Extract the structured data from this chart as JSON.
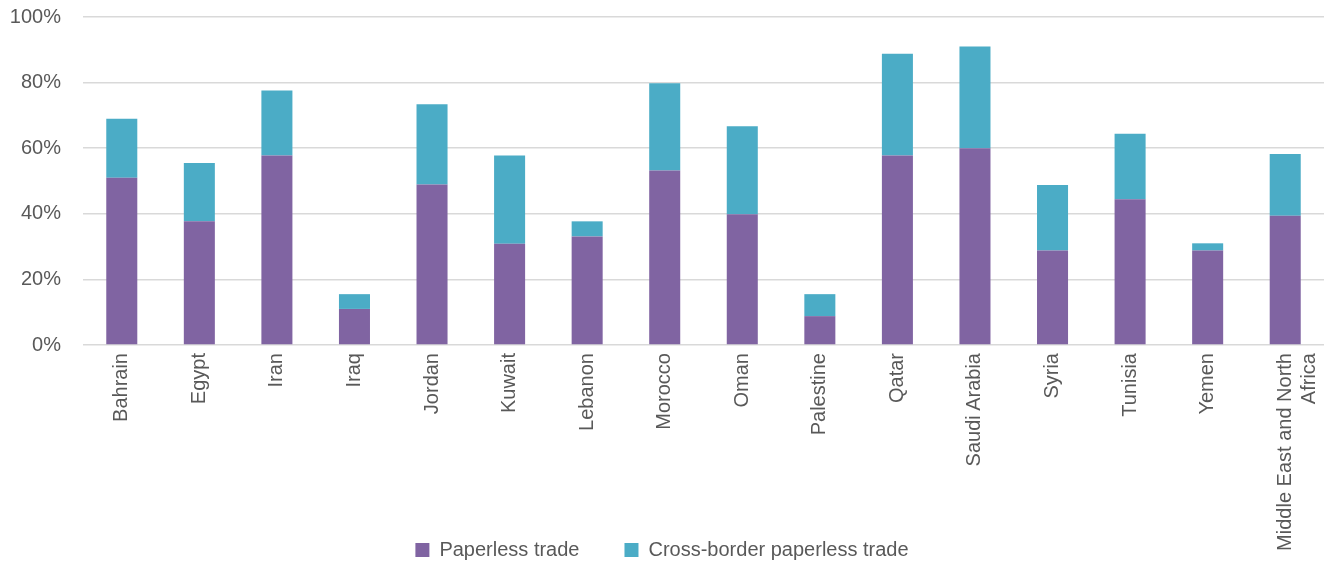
{
  "chart_data": {
    "type": "bar",
    "stacked": true,
    "categories": [
      "Bahrain",
      "Egypt",
      "Iran",
      "Iraq",
      "Jordan",
      "Kuwait",
      "Lebanon",
      "Morocco",
      "Oman",
      "Palestine",
      "Qatar",
      "Saudi Arabia",
      "Syria",
      "Tunisia",
      "Yemen",
      "Middle East and North Africa"
    ],
    "series": [
      {
        "name": "Paperless trade",
        "color": "#8064a2",
        "values": [
          51,
          37.7,
          57.8,
          11,
          48.9,
          30.9,
          33.1,
          53.2,
          39.9,
          8.8,
          57.8,
          60,
          28.8,
          44.4,
          28.8,
          39.4
        ]
      },
      {
        "name": "Cross-border paperless trade",
        "color": "#4bacc6",
        "values": [
          18,
          17.8,
          19.8,
          4.5,
          24.5,
          26.9,
          4.6,
          26.6,
          26.8,
          6.7,
          31,
          31,
          20,
          20,
          2.2,
          18.8
        ]
      }
    ],
    "ylim": [
      0,
      100
    ],
    "yticks": [
      {
        "value": 0,
        "label": "0%"
      },
      {
        "value": 20,
        "label": "20%"
      },
      {
        "value": 40,
        "label": "40%"
      },
      {
        "value": 60,
        "label": "60%"
      },
      {
        "value": 80,
        "label": "80%"
      },
      {
        "value": 100,
        "label": "100%"
      }
    ],
    "grid": "y",
    "legend": "bottom"
  }
}
